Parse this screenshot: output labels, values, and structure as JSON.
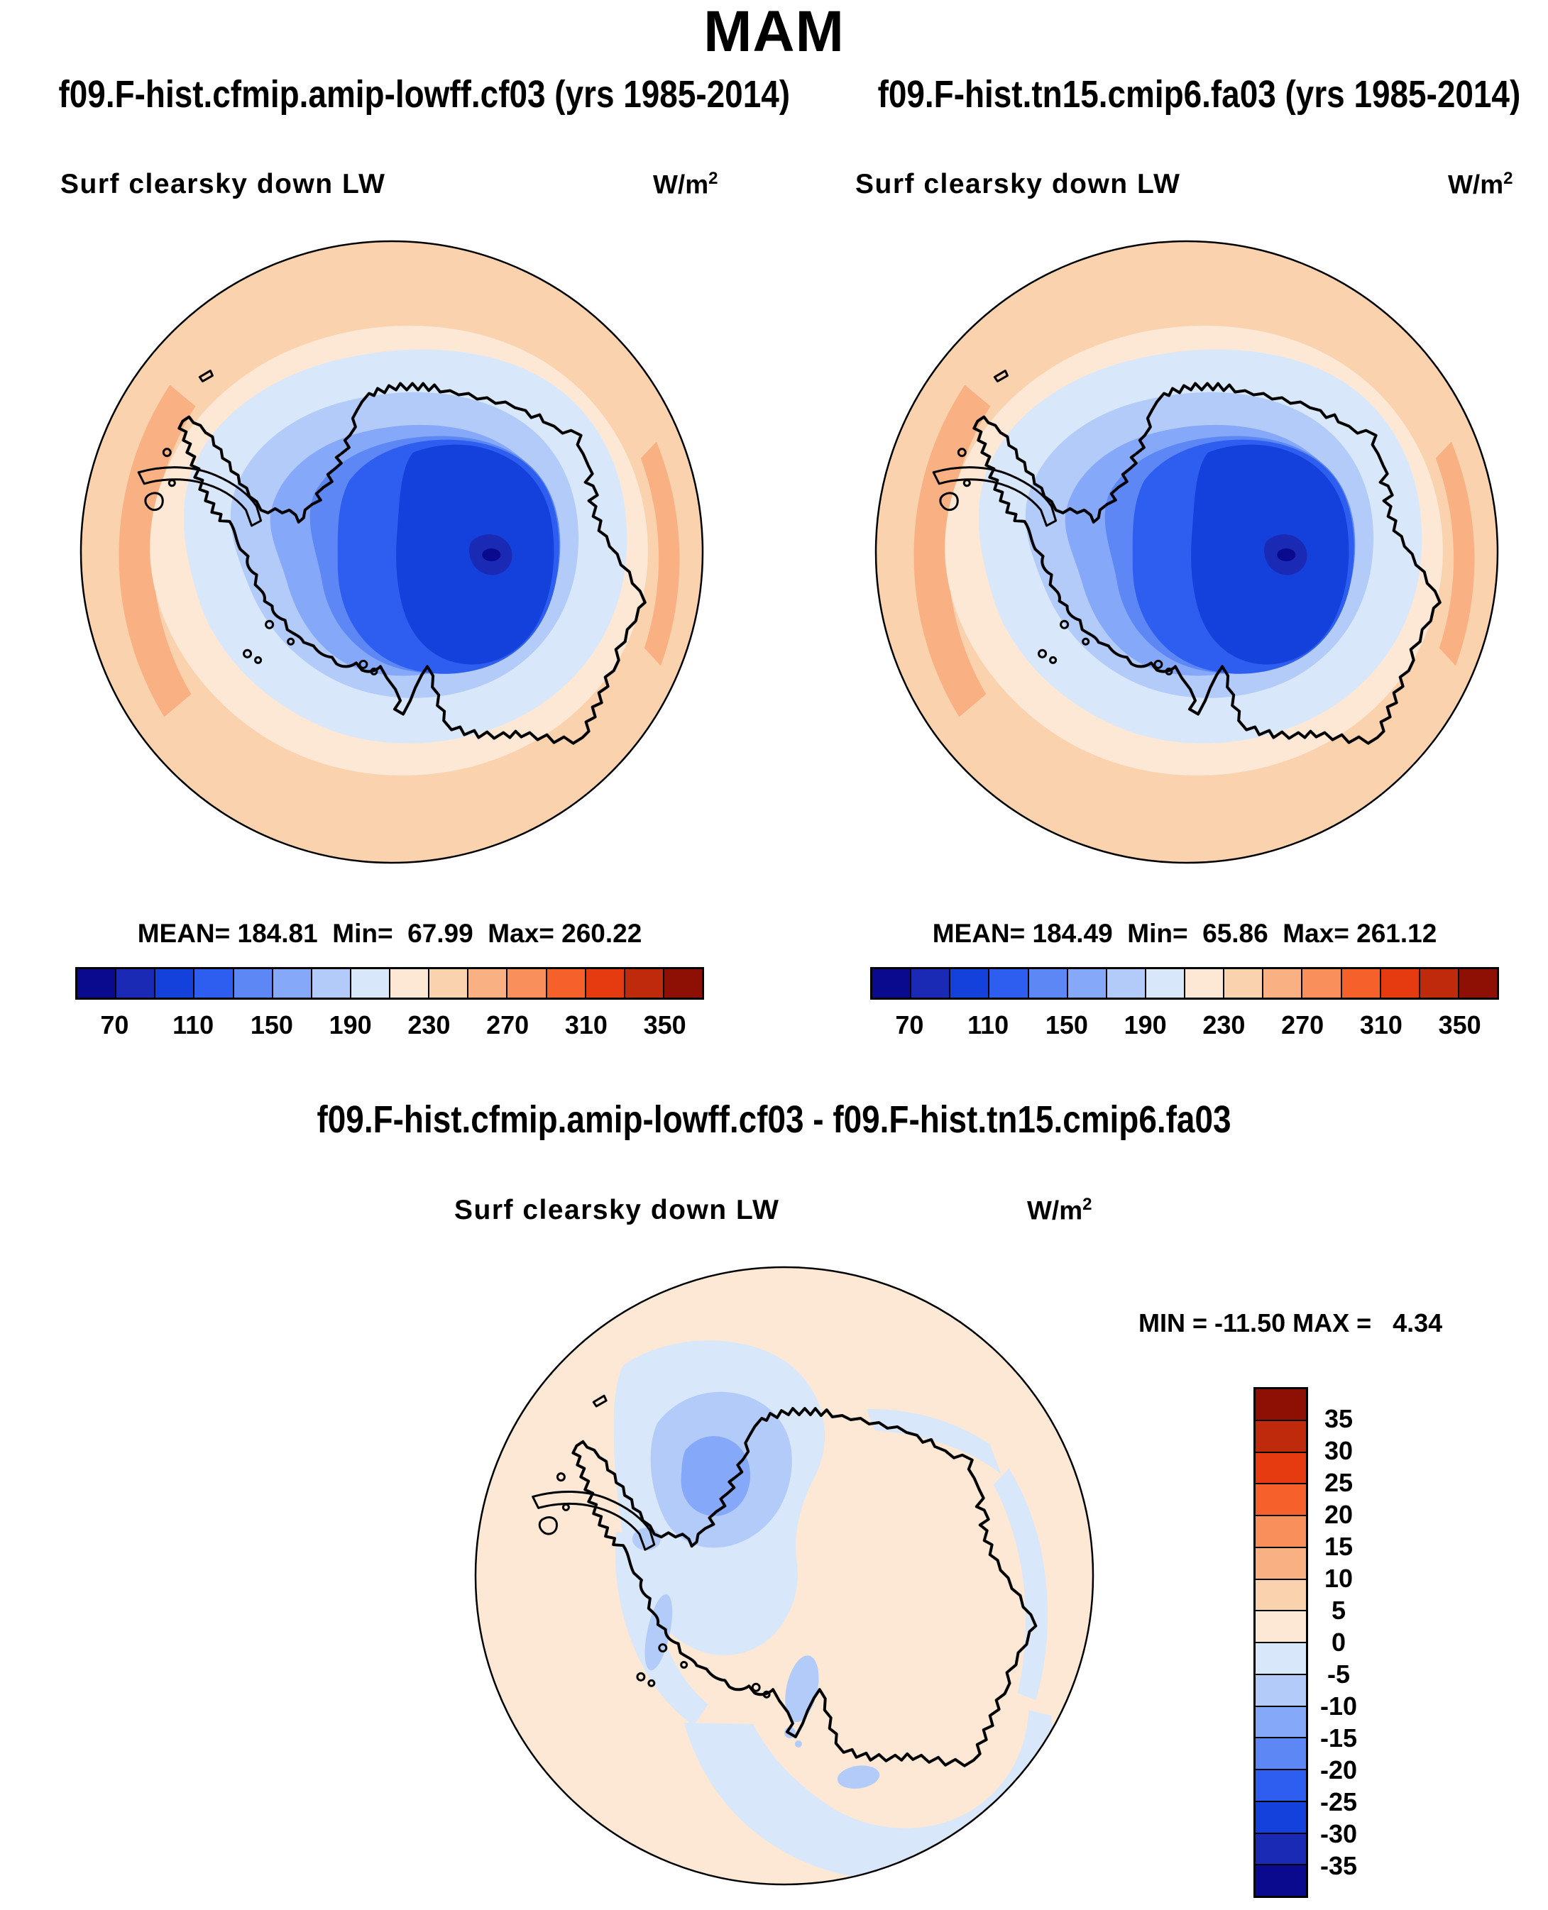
{
  "title": "MAM",
  "colors": {
    "palette": [
      "#0a0a8f",
      "#1a2ab4",
      "#1440dc",
      "#2e5ef0",
      "#5c87f5",
      "#86a8f8",
      "#b2cbf8",
      "#d9e7fa",
      "#fce8d5",
      "#fad2ae",
      "#f9b183",
      "#f98f5a",
      "#f6602a",
      "#e63b11",
      "#c02a0c",
      "#8e1004"
    ],
    "coastline": "#000000",
    "background": "#ffffff"
  },
  "top_row": {
    "left": {
      "run_title": "f09.F-hist.cfmip.amip-lowff.cf03 (yrs 1985-2014)",
      "field_label": "Surf clearsky down LW",
      "units_base": "W/m",
      "units_exponent": "2",
      "stats": "MEAN= 184.81  Min=  67.99  Max= 260.22"
    },
    "right": {
      "run_title": "f09.F-hist.tn15.cmip6.fa03 (yrs 1985-2014)",
      "field_label": "Surf clearsky down LW",
      "units_base": "W/m",
      "units_exponent": "2",
      "stats": "MEAN= 184.49  Min=  65.86  Max= 261.12"
    }
  },
  "top_colorbar": {
    "tick_labels": [
      "70",
      "110",
      "150",
      "190",
      "230",
      "270",
      "310",
      "350"
    ],
    "level_min": 50,
    "level_max": 370,
    "level_step": 20
  },
  "diff": {
    "run_title": "f09.F-hist.cfmip.amip-lowff.cf03 - f09.F-hist.tn15.cmip6.fa03",
    "field_label": "Surf clearsky down LW",
    "units_base": "W/m",
    "units_exponent": "2",
    "minmax": "MIN = -11.50 MAX =   4.34"
  },
  "diff_colorbar": {
    "tick_labels": [
      "35",
      "30",
      "25",
      "20",
      "15",
      "10",
      "5",
      "0",
      "-5",
      "-10",
      "-15",
      "-20",
      "-25",
      "-30",
      "-35"
    ],
    "level_min": -40,
    "level_max": 40,
    "level_step": 5
  },
  "chart_data": [
    {
      "type": "heatmap",
      "title": "f09.F-hist.cfmip.amip-lowff.cf03 (yrs 1985-2014)",
      "season": "MAM",
      "variable": "Surf clearsky down LW",
      "units": "W/m2",
      "projection": "south polar stereographic (Antarctica)",
      "contour_levels": [
        50,
        70,
        90,
        110,
        130,
        150,
        170,
        190,
        210,
        230,
        250,
        270,
        290,
        310,
        330,
        350,
        370
      ],
      "colorbar_ticks": [
        70,
        110,
        150,
        190,
        230,
        270,
        310,
        350
      ],
      "stats": {
        "mean": 184.81,
        "min": 67.99,
        "max": 260.22
      },
      "legend_position": "bottom",
      "description": "Low values (blues, ~70-190 W/m2) over the Antarctic continent with minimum over the polar plateau; high values (oranges, ~230-260 W/m2) over the surrounding Southern Ocean."
    },
    {
      "type": "heatmap",
      "title": "f09.F-hist.tn15.cmip6.fa03 (yrs 1985-2014)",
      "season": "MAM",
      "variable": "Surf clearsky down LW",
      "units": "W/m2",
      "projection": "south polar stereographic (Antarctica)",
      "contour_levels": [
        50,
        70,
        90,
        110,
        130,
        150,
        170,
        190,
        210,
        230,
        250,
        270,
        290,
        310,
        330,
        350,
        370
      ],
      "colorbar_ticks": [
        70,
        110,
        150,
        190,
        230,
        270,
        310,
        350
      ],
      "stats": {
        "mean": 184.49,
        "min": 65.86,
        "max": 261.12
      },
      "legend_position": "bottom",
      "description": "Nearly identical spatial pattern to the first case."
    },
    {
      "type": "heatmap",
      "title": "f09.F-hist.cfmip.amip-lowff.cf03 - f09.F-hist.tn15.cmip6.fa03",
      "season": "MAM",
      "variable": "Surf clearsky down LW",
      "units": "W/m2",
      "projection": "south polar stereographic (Antarctica)",
      "contour_levels": [
        -40,
        -35,
        -30,
        -25,
        -20,
        -15,
        -10,
        -5,
        0,
        5,
        10,
        15,
        20,
        25,
        30,
        35,
        40
      ],
      "colorbar_ticks": [
        35,
        30,
        25,
        20,
        15,
        10,
        5,
        0,
        -5,
        -10,
        -15,
        -20,
        -25,
        -30,
        -35
      ],
      "stats": {
        "min": -11.5,
        "max": 4.34
      },
      "legend_position": "right",
      "description": "Mostly weakly positive (0 to 5 W/m2, pale peach); negative differences (light blues, 0 to -15 W/m2) over the Weddell Sea / Antarctic Peninsula, along the West Antarctic coast and offshore of East Antarctica."
    }
  ]
}
